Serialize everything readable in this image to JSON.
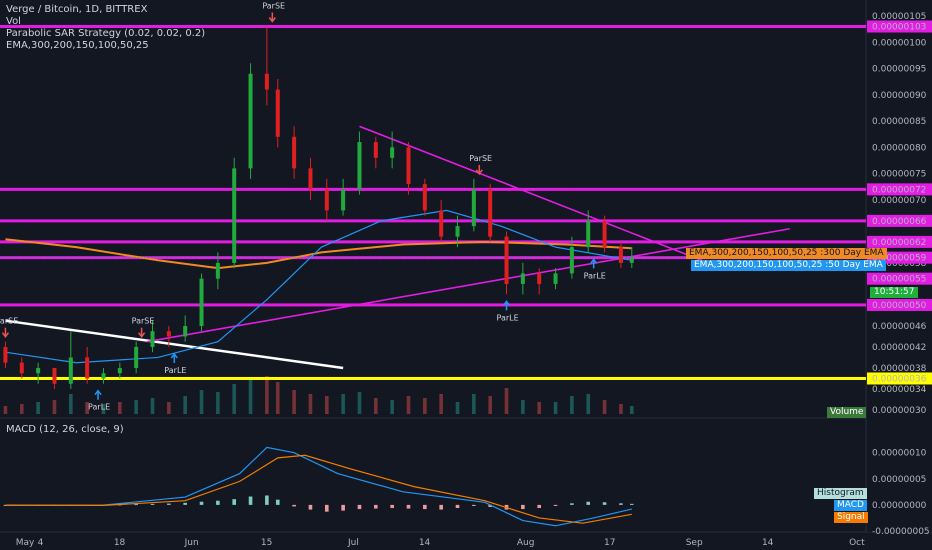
{
  "header": {
    "title": "Verge / Bitcoin, 1D, BITTREX",
    "vol_label": "Vol",
    "sar_label": "Parabolic SAR Strategy (0.02, 0.02, 0.2)",
    "ema_label": "EMA,300,200,150,100,50,25"
  },
  "macd_legend": "MACD (12, 26, close, 9)",
  "tags": {
    "ema300": "EMA,300,200,150,100,50,25 :300 Day EMA",
    "ema50": "EMA,300,200,150,100,50,25 :50 Day EMA",
    "countdown": "10:51:57",
    "volume": "Volume",
    "histogram": "Histogram",
    "macd": "MACD",
    "signal": "Signal"
  },
  "colors": {
    "background": "#131722",
    "up": "#26a69a",
    "up_bright": "#22ab3d",
    "down": "#ef5350",
    "down_bright": "#e02020",
    "magenta": "#e31ce3",
    "yellow": "#ffff00",
    "ema300": "#f08a24",
    "ema50": "#2196f3",
    "white": "#ffffff"
  },
  "chart_data": [
    {
      "type": "candlestick",
      "title": "Verge / Bitcoin, 1D, BITTREX",
      "xlabel": "",
      "ylabel": "",
      "ylim": [
        3e-07,
        1.05e-06
      ],
      "x_ticks": [
        "May",
        "4",
        "18",
        "Jun",
        "15",
        "Jul",
        "14",
        "Aug",
        "17",
        "Sep",
        "14",
        "Oct"
      ],
      "y_ticks": [
        "0.00000105",
        "0.00000100",
        "0.00000095",
        "0.00000090",
        "0.00000085",
        "0.00000080",
        "0.00000075",
        "0.00000070",
        "0.00000066",
        "0.00000058",
        "0.00000055",
        "0.00000046",
        "0.00000042",
        "0.00000038",
        "0.00000034",
        "0.00000030"
      ],
      "candles": [
        {
          "d": -3,
          "o": 4.2e-07,
          "h": 4.3e-07,
          "l": 3.8e-07,
          "c": 3.9e-07
        },
        {
          "d": 0,
          "o": 3.9e-07,
          "h": 4e-07,
          "l": 3.6e-07,
          "c": 3.7e-07
        },
        {
          "d": 3,
          "o": 3.7e-07,
          "h": 3.9e-07,
          "l": 3.5e-07,
          "c": 3.8e-07
        },
        {
          "d": 6,
          "o": 3.8e-07,
          "h": 3.8e-07,
          "l": 3.4e-07,
          "c": 3.5e-07
        },
        {
          "d": 9,
          "o": 3.5e-07,
          "h": 4.5e-07,
          "l": 3.4e-07,
          "c": 4e-07
        },
        {
          "d": 12,
          "o": 4e-07,
          "h": 4.2e-07,
          "l": 3.5e-07,
          "c": 3.6e-07
        },
        {
          "d": 15,
          "o": 3.6e-07,
          "h": 3.8e-07,
          "l": 3.5e-07,
          "c": 3.7e-07
        },
        {
          "d": 18,
          "o": 3.7e-07,
          "h": 3.9e-07,
          "l": 3.6e-07,
          "c": 3.8e-07
        },
        {
          "d": 21,
          "o": 3.8e-07,
          "h": 4.3e-07,
          "l": 3.7e-07,
          "c": 4.2e-07
        },
        {
          "d": 24,
          "o": 4.2e-07,
          "h": 4.7e-07,
          "l": 4.1e-07,
          "c": 4.5e-07
        },
        {
          "d": 27,
          "o": 4.5e-07,
          "h": 4.6e-07,
          "l": 4.2e-07,
          "c": 4.4e-07
        },
        {
          "d": 30,
          "o": 4.4e-07,
          "h": 4.8e-07,
          "l": 4.3e-07,
          "c": 4.6e-07
        },
        {
          "d": 33,
          "o": 4.6e-07,
          "h": 5.6e-07,
          "l": 4.5e-07,
          "c": 5.5e-07
        },
        {
          "d": 36,
          "o": 5.5e-07,
          "h": 6e-07,
          "l": 5.3e-07,
          "c": 5.8e-07
        },
        {
          "d": 39,
          "o": 5.8e-07,
          "h": 7.8e-07,
          "l": 5.7e-07,
          "c": 7.6e-07
        },
        {
          "d": 42,
          "o": 7.6e-07,
          "h": 9.6e-07,
          "l": 7.4e-07,
          "c": 9.4e-07
        },
        {
          "d": 45,
          "o": 9.4e-07,
          "h": 1.03e-06,
          "l": 8.8e-07,
          "c": 9.1e-07
        },
        {
          "d": 47,
          "o": 9.1e-07,
          "h": 9.3e-07,
          "l": 8e-07,
          "c": 8.2e-07
        },
        {
          "d": 50,
          "o": 8.2e-07,
          "h": 8.4e-07,
          "l": 7.4e-07,
          "c": 7.6e-07
        },
        {
          "d": 53,
          "o": 7.6e-07,
          "h": 7.8e-07,
          "l": 7e-07,
          "c": 7.2e-07
        },
        {
          "d": 56,
          "o": 7.2e-07,
          "h": 7.4e-07,
          "l": 6.6e-07,
          "c": 6.8e-07
        },
        {
          "d": 59,
          "o": 6.8e-07,
          "h": 7.4e-07,
          "l": 6.7e-07,
          "c": 7.2e-07
        },
        {
          "d": 62,
          "o": 7.2e-07,
          "h": 8.3e-07,
          "l": 7.1e-07,
          "c": 8.1e-07
        },
        {
          "d": 65,
          "o": 8.1e-07,
          "h": 8.2e-07,
          "l": 7.6e-07,
          "c": 7.8e-07
        },
        {
          "d": 68,
          "o": 7.8e-07,
          "h": 8.3e-07,
          "l": 7.6e-07,
          "c": 8e-07
        },
        {
          "d": 71,
          "o": 8e-07,
          "h": 8.1e-07,
          "l": 7.1e-07,
          "c": 7.3e-07
        },
        {
          "d": 74,
          "o": 7.3e-07,
          "h": 7.4e-07,
          "l": 6.7e-07,
          "c": 6.8e-07
        },
        {
          "d": 77,
          "o": 6.8e-07,
          "h": 7e-07,
          "l": 6.2e-07,
          "c": 6.3e-07
        },
        {
          "d": 80,
          "o": 6.3e-07,
          "h": 6.7e-07,
          "l": 6.1e-07,
          "c": 6.5e-07
        },
        {
          "d": 83,
          "o": 6.5e-07,
          "h": 7.4e-07,
          "l": 6.4e-07,
          "c": 7.2e-07
        },
        {
          "d": 86,
          "o": 7.2e-07,
          "h": 7.3e-07,
          "l": 6.2e-07,
          "c": 6.3e-07
        },
        {
          "d": 89,
          "o": 6.3e-07,
          "h": 6.4e-07,
          "l": 5.2e-07,
          "c": 5.4e-07
        },
        {
          "d": 92,
          "o": 5.4e-07,
          "h": 5.8e-07,
          "l": 5.2e-07,
          "c": 5.6e-07
        },
        {
          "d": 95,
          "o": 5.6e-07,
          "h": 5.7e-07,
          "l": 5.2e-07,
          "c": 5.4e-07
        },
        {
          "d": 98,
          "o": 5.4e-07,
          "h": 5.7e-07,
          "l": 5.3e-07,
          "c": 5.6e-07
        },
        {
          "d": 101,
          "o": 5.6e-07,
          "h": 6.3e-07,
          "l": 5.5e-07,
          "c": 6.1e-07
        },
        {
          "d": 104,
          "o": 6.1e-07,
          "h": 6.8e-07,
          "l": 6e-07,
          "c": 6.6e-07
        },
        {
          "d": 107,
          "o": 6.6e-07,
          "h": 6.7e-07,
          "l": 6e-07,
          "c": 6.1e-07
        },
        {
          "d": 110,
          "o": 6.1e-07,
          "h": 6.2e-07,
          "l": 5.7e-07,
          "c": 5.8e-07
        },
        {
          "d": 112,
          "o": 5.8e-07,
          "h": 6.1e-07,
          "l": 5.7e-07,
          "c": 5.9e-07
        }
      ],
      "horizontal_levels": [
        {
          "value": 1.03e-06,
          "label": "0.00000103",
          "color": "#e31ce3"
        },
        {
          "value": 7.2e-07,
          "label": "0.00000072",
          "color": "#e31ce3"
        },
        {
          "value": 6.6e-07,
          "label": "0.00000066",
          "color": "#e31ce3"
        },
        {
          "value": 6.2e-07,
          "label": "0.00000062",
          "color": "#e31ce3"
        },
        {
          "value": 5.9e-07,
          "label": "0.00000059",
          "color": "#e31ce3"
        },
        {
          "value": 5e-07,
          "label": "0.00000050",
          "color": "#e31ce3"
        },
        {
          "value": 3.6e-07,
          "label": "0.00000036",
          "color": "#ffff00"
        }
      ],
      "extra_price_labels": [
        {
          "value": 5.5e-07,
          "label": "0.00000055"
        }
      ],
      "trendlines": [
        {
          "color": "#ffffff",
          "from": {
            "d": -3,
            "y": 4.7e-07
          },
          "to": {
            "d": 59,
            "y": 3.8e-07
          }
        },
        {
          "color": "#e31ce3",
          "from": {
            "d": 62,
            "y": 8.4e-07
          },
          "to": {
            "d": 126,
            "y": 5.8e-07
          }
        },
        {
          "color": "#e31ce3",
          "from": {
            "d": 23,
            "y": 4.3e-07
          },
          "to": {
            "d": 141,
            "y": 6.45e-07
          }
        }
      ],
      "series": [
        {
          "name": "EMA,300,200,150,100,50,25 :300 Day EMA",
          "color": "#f08a24",
          "points": [
            [
              -3,
              6.25e-07
            ],
            [
              10,
              6.1e-07
            ],
            [
              25,
              5.85e-07
            ],
            [
              36,
              5.7e-07
            ],
            [
              45,
              5.8e-07
            ],
            [
              55,
              6e-07
            ],
            [
              70,
              6.15e-07
            ],
            [
              85,
              6.2e-07
            ],
            [
              100,
              6.15e-07
            ],
            [
              112,
              6.08e-07
            ]
          ]
        },
        {
          "name": "EMA,300,200,150,100,50,25 :50 Day EMA",
          "color": "#2196f3",
          "points": [
            [
              -3,
              4.1e-07
            ],
            [
              10,
              3.9e-07
            ],
            [
              25,
              4e-07
            ],
            [
              36,
              4.3e-07
            ],
            [
              45,
              5.1e-07
            ],
            [
              55,
              6.1e-07
            ],
            [
              66,
              6.6e-07
            ],
            [
              78,
              6.8e-07
            ],
            [
              88,
              6.5e-07
            ],
            [
              98,
              6.1e-07
            ],
            [
              112,
              5.85e-07
            ]
          ]
        }
      ],
      "signals": [
        {
          "d": -3,
          "text": "ParSE",
          "dir": "down"
        },
        {
          "d": 22,
          "text": "ParSE",
          "dir": "down"
        },
        {
          "d": 46,
          "text": "ParSE",
          "dir": "down"
        },
        {
          "d": 84,
          "text": "ParSE",
          "dir": "down"
        },
        {
          "d": 89,
          "text": "ParLE",
          "dir": "up"
        },
        {
          "d": 105,
          "text": "ParLE",
          "dir": "up"
        },
        {
          "d": 28,
          "text": "ParLE",
          "dir": "up"
        },
        {
          "d": 14,
          "text": "ParLE",
          "dir": "up"
        }
      ],
      "volume": [
        {
          "d": -3,
          "v": 0.2,
          "up": false
        },
        {
          "d": 0,
          "v": 0.25,
          "up": false
        },
        {
          "d": 3,
          "v": 0.3,
          "up": true
        },
        {
          "d": 6,
          "v": 0.35,
          "up": false
        },
        {
          "d": 9,
          "v": 0.5,
          "up": true
        },
        {
          "d": 12,
          "v": 0.3,
          "up": false
        },
        {
          "d": 15,
          "v": 0.25,
          "up": true
        },
        {
          "d": 18,
          "v": 0.3,
          "up": false
        },
        {
          "d": 21,
          "v": 0.35,
          "up": true
        },
        {
          "d": 24,
          "v": 0.4,
          "up": true
        },
        {
          "d": 27,
          "v": 0.3,
          "up": false
        },
        {
          "d": 30,
          "v": 0.45,
          "up": true
        },
        {
          "d": 33,
          "v": 0.6,
          "up": true
        },
        {
          "d": 36,
          "v": 0.55,
          "up": true
        },
        {
          "d": 39,
          "v": 0.75,
          "up": true
        },
        {
          "d": 42,
          "v": 0.9,
          "up": true
        },
        {
          "d": 45,
          "v": 0.95,
          "up": false
        },
        {
          "d": 47,
          "v": 0.8,
          "up": false
        },
        {
          "d": 50,
          "v": 0.6,
          "up": false
        },
        {
          "d": 53,
          "v": 0.5,
          "up": false
        },
        {
          "d": 56,
          "v": 0.45,
          "up": false
        },
        {
          "d": 59,
          "v": 0.5,
          "up": true
        },
        {
          "d": 62,
          "v": 0.55,
          "up": true
        },
        {
          "d": 65,
          "v": 0.4,
          "up": false
        },
        {
          "d": 68,
          "v": 0.35,
          "up": true
        },
        {
          "d": 71,
          "v": 0.45,
          "up": false
        },
        {
          "d": 74,
          "v": 0.4,
          "up": false
        },
        {
          "d": 77,
          "v": 0.5,
          "up": false
        },
        {
          "d": 80,
          "v": 0.3,
          "up": true
        },
        {
          "d": 83,
          "v": 0.5,
          "up": true
        },
        {
          "d": 86,
          "v": 0.45,
          "up": false
        },
        {
          "d": 89,
          "v": 0.65,
          "up": false
        },
        {
          "d": 92,
          "v": 0.35,
          "up": true
        },
        {
          "d": 95,
          "v": 0.3,
          "up": false
        },
        {
          "d": 98,
          "v": 0.3,
          "up": true
        },
        {
          "d": 101,
          "v": 0.45,
          "up": true
        },
        {
          "d": 104,
          "v": 0.5,
          "up": true
        },
        {
          "d": 107,
          "v": 0.35,
          "up": false
        },
        {
          "d": 110,
          "v": 0.25,
          "up": false
        },
        {
          "d": 112,
          "v": 0.2,
          "up": true
        }
      ]
    },
    {
      "type": "bar",
      "title": "MACD (12, 26, close, 9)",
      "xlabel": "",
      "ylabel": "",
      "ylim": [
        -5e-08,
        1.3e-07
      ],
      "y_ticks": [
        "0.00000010",
        "0.00000005",
        "0.00000000",
        "-0.00000005"
      ],
      "histogram": [
        {
          "d": -3,
          "v": -5e-10
        },
        {
          "d": 0,
          "v": -5e-10
        },
        {
          "d": 3,
          "v": -5e-10
        },
        {
          "d": 6,
          "v": -1e-09
        },
        {
          "d": 9,
          "v": -1e-09
        },
        {
          "d": 12,
          "v": -5e-10
        },
        {
          "d": 15,
          "v": 5e-10
        },
        {
          "d": 18,
          "v": 1e-09
        },
        {
          "d": 21,
          "v": 1.5e-09
        },
        {
          "d": 24,
          "v": 2e-09
        },
        {
          "d": 27,
          "v": 2.5e-09
        },
        {
          "d": 30,
          "v": 4e-09
        },
        {
          "d": 33,
          "v": 6e-09
        },
        {
          "d": 36,
          "v": 8e-09
        },
        {
          "d": 39,
          "v": 1.1e-08
        },
        {
          "d": 42,
          "v": 1.6e-08
        },
        {
          "d": 45,
          "v": 1.8e-08
        },
        {
          "d": 47,
          "v": 1e-08
        },
        {
          "d": 50,
          "v": -3e-09
        },
        {
          "d": 53,
          "v": -9e-09
        },
        {
          "d": 56,
          "v": -1.3e-08
        },
        {
          "d": 59,
          "v": -1.1e-08
        },
        {
          "d": 62,
          "v": -8e-09
        },
        {
          "d": 65,
          "v": -7e-09
        },
        {
          "d": 68,
          "v": -6e-09
        },
        {
          "d": 71,
          "v": -7e-09
        },
        {
          "d": 74,
          "v": -8e-09
        },
        {
          "d": 77,
          "v": -9e-09
        },
        {
          "d": 80,
          "v": -6e-09
        },
        {
          "d": 83,
          "v": -2e-09
        },
        {
          "d": 86,
          "v": -4e-09
        },
        {
          "d": 89,
          "v": -9e-09
        },
        {
          "d": 92,
          "v": -8e-09
        },
        {
          "d": 95,
          "v": -6e-09
        },
        {
          "d": 98,
          "v": -2e-09
        },
        {
          "d": 101,
          "v": 3e-09
        },
        {
          "d": 104,
          "v": 6e-09
        },
        {
          "d": 107,
          "v": 5e-09
        },
        {
          "d": 110,
          "v": 3e-09
        },
        {
          "d": 112,
          "v": 2e-09
        }
      ],
      "series": [
        {
          "name": "MACD",
          "color": "#2196f3",
          "points": [
            [
              -3,
              -1e-09
            ],
            [
              15,
              -5e-10
            ],
            [
              30,
              1.5e-08
            ],
            [
              40,
              6e-08
            ],
            [
              45,
              1.1e-07
            ],
            [
              50,
              1e-07
            ],
            [
              58,
              6e-08
            ],
            [
              70,
              2.5e-08
            ],
            [
              85,
              5e-09
            ],
            [
              92,
              -3e-08
            ],
            [
              98,
              -4e-08
            ],
            [
              105,
              -2.5e-08
            ],
            [
              112,
              -8e-09
            ]
          ]
        },
        {
          "name": "Signal",
          "color": "#f57c00",
          "points": [
            [
              -3,
              -5e-10
            ],
            [
              15,
              -1e-09
            ],
            [
              30,
              8e-09
            ],
            [
              40,
              4.5e-08
            ],
            [
              47,
              9e-08
            ],
            [
              52,
              9.5e-08
            ],
            [
              60,
              7e-08
            ],
            [
              72,
              3.5e-08
            ],
            [
              85,
              8e-09
            ],
            [
              95,
              -2.5e-08
            ],
            [
              103,
              -3.5e-08
            ],
            [
              112,
              -1.8e-08
            ]
          ]
        }
      ]
    }
  ]
}
